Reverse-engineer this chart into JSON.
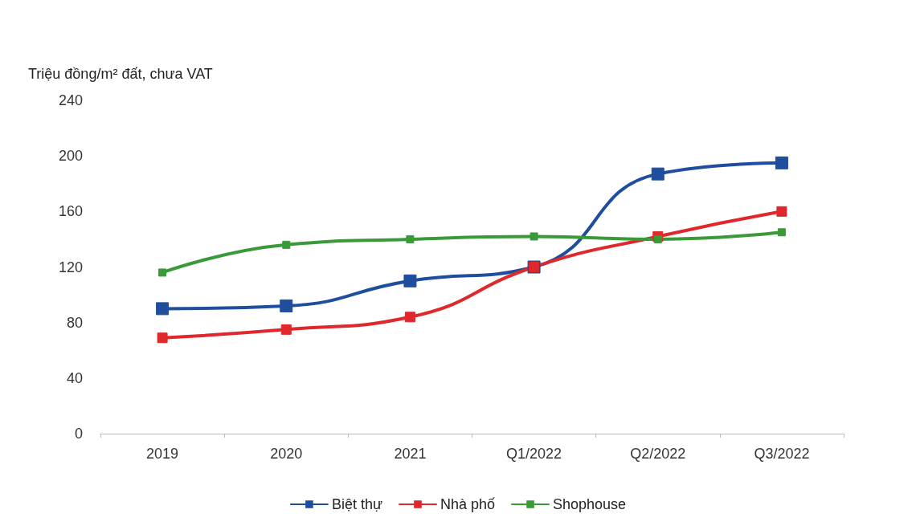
{
  "chart_data": {
    "type": "line",
    "ylabel": "Triệu đồng/m² đất, chưa VAT",
    "categories": [
      "2019",
      "2020",
      "2021",
      "Q1/2022",
      "Q2/2022",
      "Q3/2022"
    ],
    "series": [
      {
        "name": "Biệt thự",
        "color": "#1f4e9e",
        "values": [
          90,
          92,
          110,
          120,
          187,
          195
        ]
      },
      {
        "name": "Nhà phố",
        "color": "#e0282c",
        "values": [
          69,
          75,
          84,
          120,
          142,
          160
        ]
      },
      {
        "name": "Shophouse",
        "color": "#3a9a3a",
        "values": [
          116,
          136,
          140,
          142,
          140,
          145
        ]
      }
    ],
    "ylim": [
      0,
      240
    ],
    "yticks": [
      0,
      40,
      80,
      120,
      160,
      200,
      240
    ],
    "grid": false,
    "legend": "bottom",
    "marker": "square",
    "line_style": "solid"
  }
}
